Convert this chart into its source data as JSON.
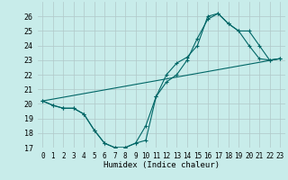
{
  "xlabel": "Humidex (Indice chaleur)",
  "background_color": "#c8ecea",
  "grid_color": "#b0c8c8",
  "line_color": "#006666",
  "xlim": [
    -0.5,
    23.5
  ],
  "ylim": [
    17,
    27
  ],
  "xticks": [
    0,
    1,
    2,
    3,
    4,
    5,
    6,
    7,
    8,
    9,
    10,
    11,
    12,
    13,
    14,
    15,
    16,
    17,
    18,
    19,
    20,
    21,
    22,
    23
  ],
  "yticks": [
    17,
    18,
    19,
    20,
    21,
    22,
    23,
    24,
    25,
    26
  ],
  "curve1_x": [
    0,
    1,
    2,
    3,
    4,
    5,
    6,
    7,
    8,
    9,
    10,
    11,
    12,
    13,
    14,
    15,
    16,
    17,
    18,
    19,
    20,
    21,
    22,
    23
  ],
  "curve1_y": [
    20.2,
    19.9,
    19.7,
    19.7,
    19.3,
    18.2,
    17.3,
    17.0,
    17.0,
    17.3,
    18.5,
    20.5,
    21.5,
    22.0,
    23.0,
    24.5,
    25.8,
    26.2,
    25.5,
    25.0,
    24.0,
    23.1,
    23.0,
    23.1
  ],
  "curve2_x": [
    0,
    1,
    2,
    3,
    4,
    5,
    6,
    7,
    8,
    9,
    10,
    11,
    12,
    13,
    14,
    15,
    16,
    17,
    18,
    19,
    20,
    21,
    22,
    23
  ],
  "curve2_y": [
    20.2,
    19.9,
    19.7,
    19.7,
    19.3,
    18.2,
    17.3,
    17.0,
    17.0,
    17.3,
    17.5,
    20.5,
    22.0,
    22.8,
    23.2,
    24.0,
    26.0,
    26.2,
    25.5,
    25.0,
    25.0,
    24.0,
    23.0,
    23.1
  ],
  "line3_x": [
    0,
    23
  ],
  "line3_y": [
    20.2,
    23.1
  ]
}
